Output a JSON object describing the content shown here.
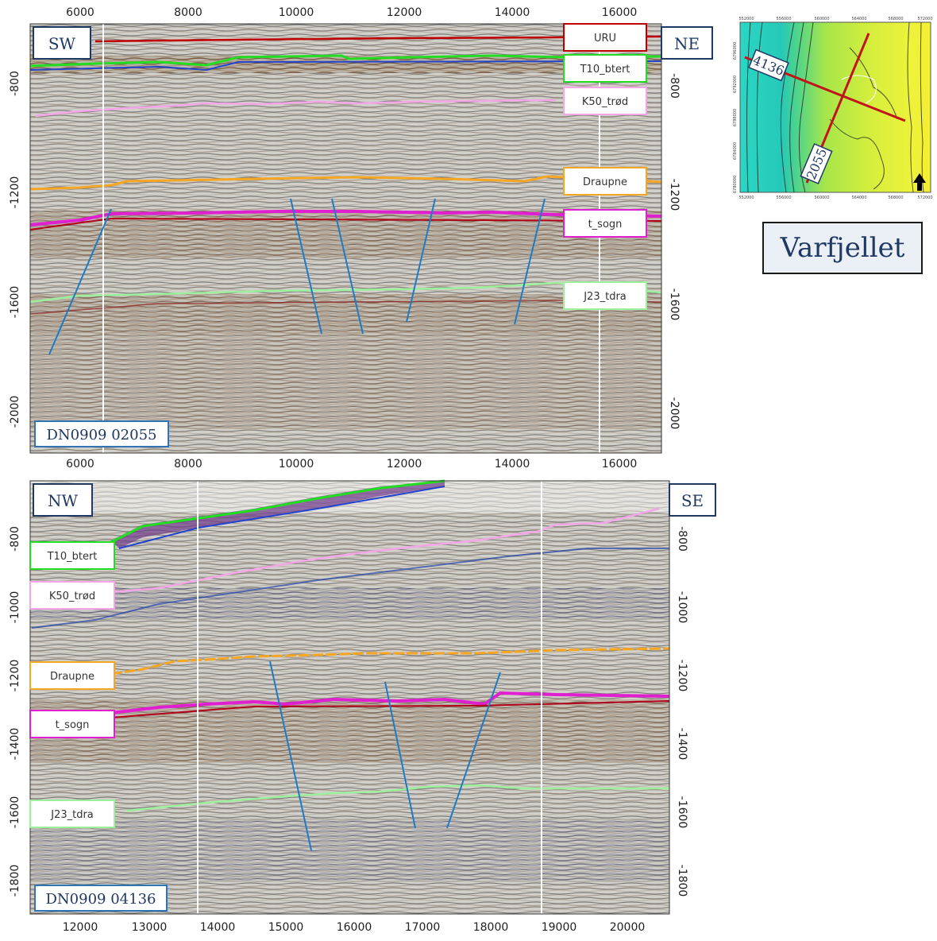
{
  "title": "Varfjellet",
  "panels": [
    {
      "line_id": "DN0909 02055",
      "left_dir": "SW",
      "right_dir": "NE",
      "x_ticks": [
        "6000",
        "8000",
        "10000",
        "12000",
        "14000",
        "16000"
      ],
      "y_ticks_left": [
        "-800",
        "-1200",
        "-1600",
        "-2000"
      ],
      "y_ticks_right": [
        "-800",
        "-1200",
        "-1600",
        "-2000"
      ],
      "horizons": [
        {
          "name": "URU",
          "color": "#c00000"
        },
        {
          "name": "T10_btert",
          "color": "#22dd22"
        },
        {
          "name": "K50_trød",
          "color": "#f4a6e8"
        },
        {
          "name": "Draupne",
          "color": "#f5a623"
        },
        {
          "name": "t_sogn",
          "color": "#e020d0"
        },
        {
          "name": "J23_tdra",
          "color": "#9cf09c"
        }
      ]
    },
    {
      "line_id": "DN0909 04136",
      "left_dir": "NW",
      "right_dir": "SE",
      "x_ticks": [
        "12000",
        "13000",
        "14000",
        "15000",
        "16000",
        "17000",
        "18000",
        "19000",
        "20000"
      ],
      "y_ticks_left": [
        "-800",
        "-1000",
        "-1200",
        "-1400",
        "-1600",
        "-1800"
      ],
      "y_ticks_right": [
        "-800",
        "-1000",
        "-1200",
        "-1400",
        "-1600",
        "-1800"
      ],
      "horizons": [
        {
          "name": "T10_btert",
          "color": "#22dd22"
        },
        {
          "name": "K50_trød",
          "color": "#f4a6e8"
        },
        {
          "name": "Draupne",
          "color": "#f5a623"
        },
        {
          "name": "t_sogn",
          "color": "#e020d0"
        },
        {
          "name": "J23_tdra",
          "color": "#9cf09c"
        }
      ]
    }
  ],
  "map": {
    "line_labels": [
      "4136",
      "2055"
    ],
    "x_ticks": [
      "552000",
      "556000",
      "560000",
      "564000",
      "568000",
      "572000"
    ],
    "y_ticks": [
      "6780000",
      "6784000",
      "6788000",
      "6792000",
      "6796000"
    ],
    "north_arrow": "north-arrow-icon"
  }
}
